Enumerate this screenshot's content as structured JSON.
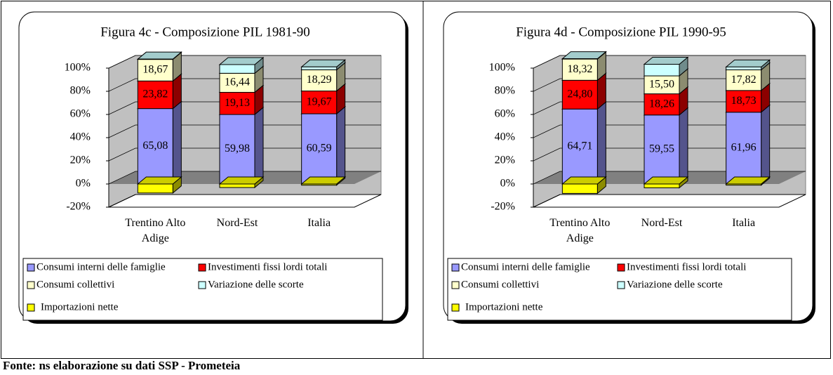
{
  "chart_data": [
    {
      "type": "bar",
      "stacked": true,
      "title": "Figura 4c - Composizione PIL 1981-90",
      "categories": [
        "Trentino Alto\nAdige",
        "Nord-Est",
        "Italia"
      ],
      "series": [
        {
          "name": "Consumi interni delle famiglie",
          "color": "#9999ff",
          "values": [
            65.08,
            59.98,
            60.59
          ],
          "value_labels": [
            "65,08",
            "59,98",
            "60,59"
          ]
        },
        {
          "name": "Investimenti fissi lordi totali",
          "color": "#ff0000",
          "values": [
            23.82,
            19.13,
            19.67
          ],
          "value_labels": [
            "23,82",
            "19,13",
            "19,67"
          ]
        },
        {
          "name": "Consumi collettivi",
          "color": "#ffffcc",
          "values": [
            18.67,
            16.44,
            18.29
          ],
          "value_labels": [
            "18,67",
            "16,44",
            "18,29"
          ]
        },
        {
          "name": "Variazione delle scorte",
          "color": "#ccffff",
          "values": [
            0.2,
            7.5,
            2.5
          ]
        },
        {
          "name": "Importazioni nette",
          "color": "#ffff00",
          "values": [
            -7.77,
            -3.05,
            -1.05
          ]
        }
      ],
      "ylim": [
        -20,
        100
      ],
      "yticks": [
        {
          "value": -20,
          "label": "-20%"
        },
        {
          "value": 0,
          "label": "0%"
        },
        {
          "value": 20,
          "label": "20%"
        },
        {
          "value": 40,
          "label": "40%"
        },
        {
          "value": 60,
          "label": "60%"
        },
        {
          "value": 80,
          "label": "80%"
        },
        {
          "value": 100,
          "label": "100%"
        }
      ],
      "grid": true,
      "legend": "bottom"
    },
    {
      "type": "bar",
      "stacked": true,
      "title": "Figura 4d - Composizione PIL 1990-95",
      "categories": [
        "Trentino Alto\nAdige",
        "Nord-Est",
        "Italia"
      ],
      "series": [
        {
          "name": "Consumi interni delle famiglie",
          "color": "#9999ff",
          "values": [
            64.71,
            59.55,
            61.96
          ],
          "value_labels": [
            "64,71",
            "59,55",
            "61,96"
          ]
        },
        {
          "name": "Investimenti fissi lordi totali",
          "color": "#ff0000",
          "values": [
            24.8,
            18.26,
            18.73
          ],
          "value_labels": [
            "24,80",
            "18,26",
            "18,73"
          ]
        },
        {
          "name": "Consumi collettivi",
          "color": "#ffffcc",
          "values": [
            18.32,
            15.5,
            17.82
          ],
          "value_labels": [
            "18,32",
            "15,50",
            "17,82"
          ]
        },
        {
          "name": "Variazione delle scorte",
          "color": "#ccffff",
          "values": [
            0.3,
            10.0,
            2.5
          ]
        },
        {
          "name": "Importazioni nette",
          "color": "#ffff00",
          "values": [
            -8.13,
            -3.31,
            -1.01
          ]
        }
      ],
      "ylim": [
        -20,
        100
      ],
      "yticks": [
        {
          "value": -20,
          "label": "-20%"
        },
        {
          "value": 0,
          "label": "0%"
        },
        {
          "value": 20,
          "label": "20%"
        },
        {
          "value": 40,
          "label": "40%"
        },
        {
          "value": 60,
          "label": "60%"
        },
        {
          "value": 80,
          "label": "80%"
        },
        {
          "value": 100,
          "label": "100%"
        }
      ],
      "grid": true,
      "legend": "bottom"
    }
  ],
  "source": "Fonte: ns elaborazione su dati SSP - Prometeia"
}
